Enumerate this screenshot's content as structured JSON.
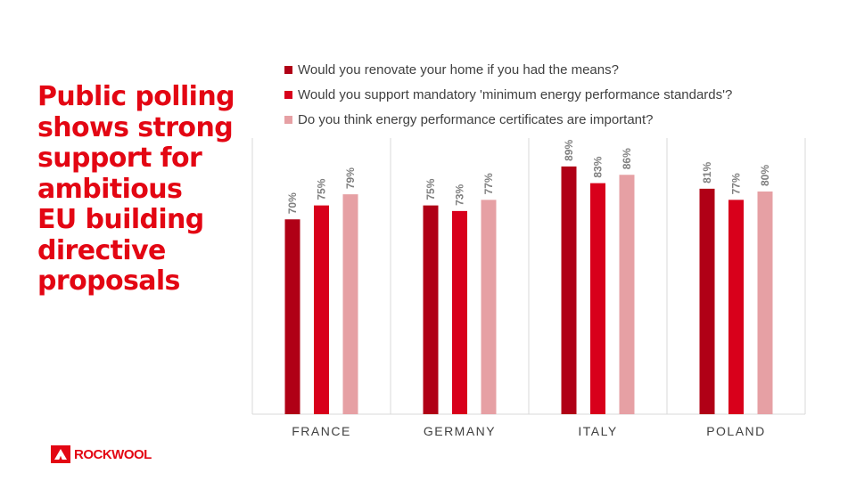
{
  "slide": {
    "title": "Public polling\nshows strong\nsupport for\nambitious\nEU building\ndirective\nproposals",
    "brand_color": "#e30613"
  },
  "logo": {
    "text": "ROCKWOOL"
  },
  "chart_data": {
    "type": "bar",
    "categories": [
      "FRANCE",
      "GERMANY",
      "ITALY",
      "POLAND"
    ],
    "series": [
      {
        "name": "Would you renovate your home if you had the means?",
        "color": "#b00016",
        "values": [
          70,
          75,
          89,
          81
        ],
        "labels": [
          "70%",
          "75%",
          "89%",
          "81%"
        ]
      },
      {
        "name": "Would you support mandatory 'minimum energy performance standards'?",
        "color": "#d8001b",
        "values": [
          75,
          73,
          83,
          77
        ],
        "labels": [
          "75%",
          "73%",
          "83%",
          "77%"
        ]
      },
      {
        "name": "Do you think energy performance certificates are important?",
        "color": "#e6a0a4",
        "values": [
          79,
          77,
          86,
          80
        ],
        "labels": [
          "79%",
          "77%",
          "86%",
          "80%"
        ]
      }
    ],
    "ylim": [
      0,
      100
    ],
    "legend_position": "top",
    "grid": "vertical category separators",
    "data_labels": true
  }
}
